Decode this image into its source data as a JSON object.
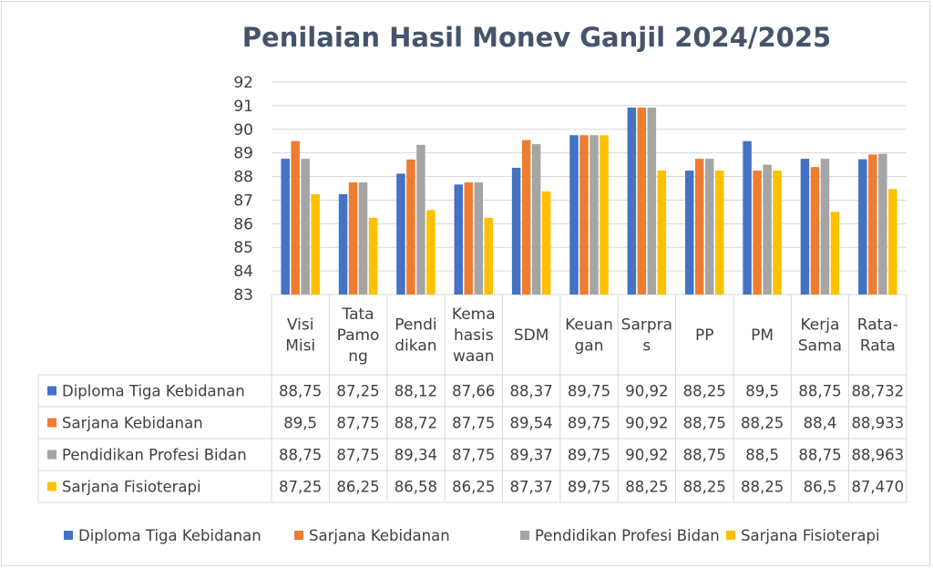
{
  "chart_data": {
    "type": "bar",
    "title": "Penilaian Hasil Monev Ganjil 2024/2025",
    "categories": [
      [
        "Visi",
        "Misi"
      ],
      [
        "Tata",
        "Pamo",
        "ng"
      ],
      [
        "Pendi",
        "dikan"
      ],
      [
        "Kema",
        "hasis",
        "waan"
      ],
      [
        "SDM"
      ],
      [
        "Keuan",
        "gan"
      ],
      [
        "Sarpra",
        "s"
      ],
      [
        "PP"
      ],
      [
        "PM"
      ],
      [
        "Kerja",
        "Sama"
      ],
      [
        "Rata-",
        "Rata"
      ]
    ],
    "yticks": [
      "92",
      "91",
      "90",
      "89",
      "88",
      "87",
      "86",
      "85",
      "84",
      "83"
    ],
    "ylim": [
      83,
      92
    ],
    "grid": true,
    "legend_position": "bottom",
    "data_table": true,
    "series": [
      {
        "name": "Diploma Tiga Kebidanan",
        "color": "#4472c4",
        "values": [
          88.75,
          87.25,
          88.12,
          87.66,
          88.37,
          89.75,
          90.92,
          88.25,
          89.5,
          88.75,
          88.732
        ],
        "labels": [
          "88,75",
          "87,25",
          "88,12",
          "87,66",
          "88,37",
          "89,75",
          "90,92",
          "88,25",
          "89,5",
          "88,75",
          "88,732"
        ]
      },
      {
        "name": "Sarjana Kebidanan",
        "color": "#ed7d31",
        "values": [
          89.5,
          87.75,
          88.72,
          87.75,
          89.54,
          89.75,
          90.92,
          88.75,
          88.25,
          88.4,
          88.933
        ],
        "labels": [
          "89,5",
          "87,75",
          "88,72",
          "87,75",
          "89,54",
          "89,75",
          "90,92",
          "88,75",
          "88,25",
          "88,4",
          "88,933"
        ]
      },
      {
        "name": "Pendidikan Profesi Bidan",
        "color": "#a5a5a5",
        "values": [
          88.75,
          87.75,
          89.34,
          87.75,
          89.37,
          89.75,
          90.92,
          88.75,
          88.5,
          88.75,
          88.963
        ],
        "labels": [
          "88,75",
          "87,75",
          "89,34",
          "87,75",
          "89,37",
          "89,75",
          "90,92",
          "88,75",
          "88,5",
          "88,75",
          "88,963"
        ]
      },
      {
        "name": "Sarjana Fisioterapi",
        "color": "#ffc000",
        "values": [
          87.25,
          86.25,
          86.58,
          86.25,
          87.37,
          89.75,
          88.25,
          88.25,
          88.25,
          86.5,
          87.47
        ],
        "labels": [
          "87,25",
          "86,25",
          "86,58",
          "86,25",
          "87,37",
          "89,75",
          "88,25",
          "88,25",
          "88,25",
          "86,5",
          "87,470"
        ]
      }
    ]
  }
}
